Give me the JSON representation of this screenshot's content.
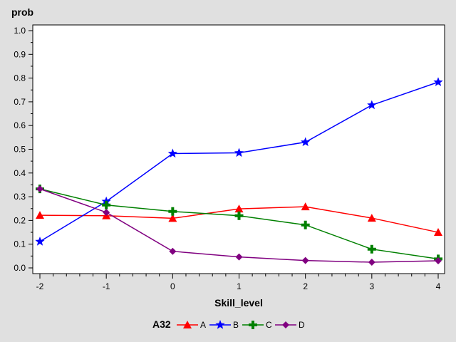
{
  "chart_data": {
    "type": "line",
    "title": "",
    "xlabel": "Skill_level",
    "ylabel": "prob",
    "x": [
      -2,
      -1,
      0,
      1,
      2,
      3,
      4
    ],
    "xlim": [
      -2,
      4
    ],
    "ylim": [
      0,
      1.0
    ],
    "x_ticks": [
      "-2",
      "-1",
      "0",
      "1",
      "2",
      "3",
      "4"
    ],
    "y_ticks": [
      "0.0",
      "0.1",
      "0.2",
      "0.3",
      "0.4",
      "0.5",
      "0.6",
      "0.7",
      "0.8",
      "0.9",
      "1.0"
    ],
    "grid": false,
    "legend_title": "A32",
    "legend_position": "bottom",
    "series": [
      {
        "name": "A",
        "color": "#ff0000",
        "marker": "triangle",
        "values": [
          0.222,
          0.22,
          0.209,
          0.249,
          0.258,
          0.21,
          0.15
        ]
      },
      {
        "name": "B",
        "color": "#0000ff",
        "marker": "star",
        "values": [
          0.111,
          0.28,
          0.482,
          0.485,
          0.53,
          0.686,
          0.783
        ]
      },
      {
        "name": "C",
        "color": "#008000",
        "marker": "plus",
        "values": [
          0.333,
          0.265,
          0.238,
          0.22,
          0.181,
          0.079,
          0.038
        ]
      },
      {
        "name": "D",
        "color": "#800080",
        "marker": "diamond",
        "values": [
          0.333,
          0.234,
          0.07,
          0.046,
          0.031,
          0.024,
          0.03
        ]
      }
    ]
  }
}
